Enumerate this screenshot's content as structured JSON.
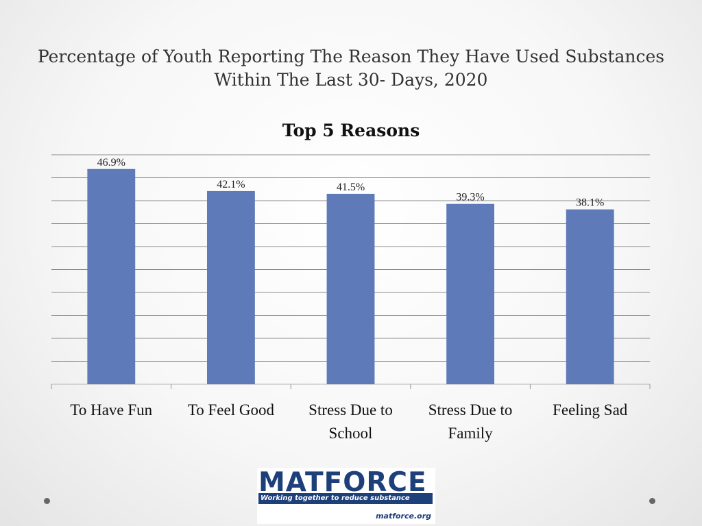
{
  "slide": {
    "title_line1": "Percentage of Youth Reporting The Reason They Have Used Substances",
    "title_line2": "Within The Last 30- Days, 2020"
  },
  "chart_data": {
    "type": "bar",
    "title": "Top 5 Reasons",
    "categories": [
      [
        "To Have Fun"
      ],
      [
        "To Feel Good"
      ],
      [
        "Stress Due to",
        "School"
      ],
      [
        "Stress Due to",
        "Family"
      ],
      [
        "Feeling Sad"
      ]
    ],
    "values": [
      46.9,
      42.1,
      41.5,
      39.3,
      38.1
    ],
    "value_labels": [
      "46.9%",
      "42.1%",
      "41.5%",
      "39.3%",
      "38.1%"
    ],
    "ylim": [
      0,
      50
    ],
    "grid": true,
    "legend": "none",
    "bar_color": "#5f7ab8"
  },
  "logo": {
    "name": "MATFORCE",
    "tagline": "Working together to reduce substance abuse",
    "url": "matforce.org"
  }
}
